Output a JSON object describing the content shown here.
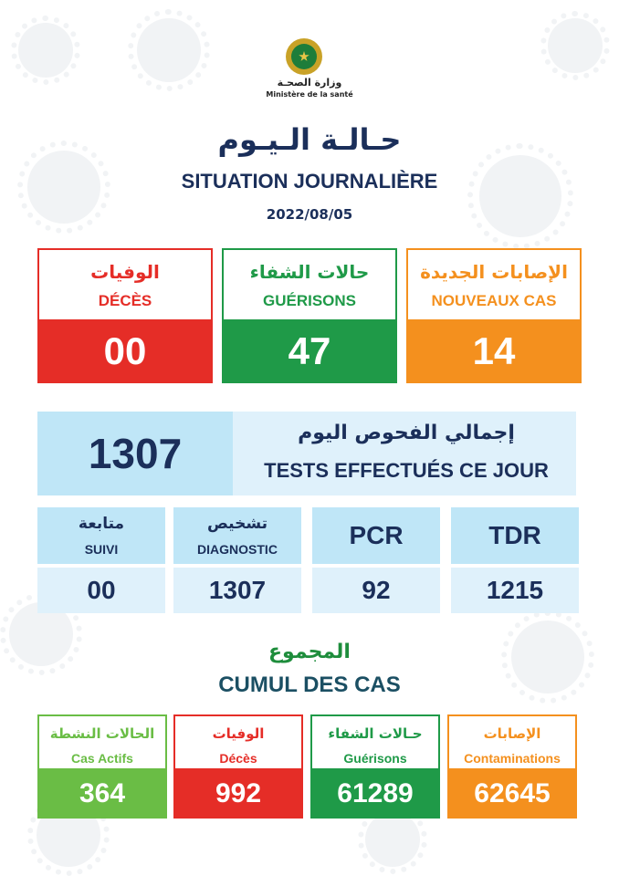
{
  "header": {
    "ministry_ar": "وزارة الصحـة",
    "ministry_fr": "Ministère de la santé",
    "title_ar": "حـالـة الـيـوم",
    "title_fr": "SITUATION JOURNALIÈRE",
    "date": "2022/08/05"
  },
  "colors": {
    "red": "#e52d27",
    "green": "#1f9a48",
    "orange": "#f4901e",
    "lime": "#6abd45",
    "navy": "#1b2f5a",
    "light_blue": "#bfe6f7"
  },
  "daily": [
    {
      "label_ar": "الوفيات",
      "label_fr": "DÉCÈS",
      "value": "00"
    },
    {
      "label_ar": "حالات الشفاء",
      "label_fr": "GUÉRISONS",
      "value": "47"
    },
    {
      "label_ar": "الإصابات الجديدة",
      "label_fr": "NOUVEAUX CAS",
      "value": "14"
    }
  ],
  "tests": {
    "total": "1307",
    "label_ar": "إجمالي الفحوص اليوم",
    "label_fr": "TESTS EFFECTUÉS CE JOUR",
    "breakdown": [
      {
        "label_ar": "متابعة",
        "label_fr": "SUIVI",
        "value": "00"
      },
      {
        "label_ar": "تشخيص",
        "label_fr": "DIAGNOSTIC",
        "value": "1307"
      },
      {
        "label": "PCR",
        "value": "92"
      },
      {
        "label": "TDR",
        "value": "1215"
      }
    ]
  },
  "cumulative": {
    "title_ar": "المجموع",
    "title_fr": "CUMUL DES CAS",
    "items": [
      {
        "label_ar": "الحالات النشطة",
        "label_fr": "Cas Actifs",
        "value": "364"
      },
      {
        "label_ar": "الوفيات",
        "label_fr": "Décès",
        "value": "992"
      },
      {
        "label_ar": "حـالات الشفاء",
        "label_fr": "Guérisons",
        "value": "61289"
      },
      {
        "label_ar": "الإصابات",
        "label_fr": "Contaminations",
        "value": "62645"
      }
    ]
  }
}
